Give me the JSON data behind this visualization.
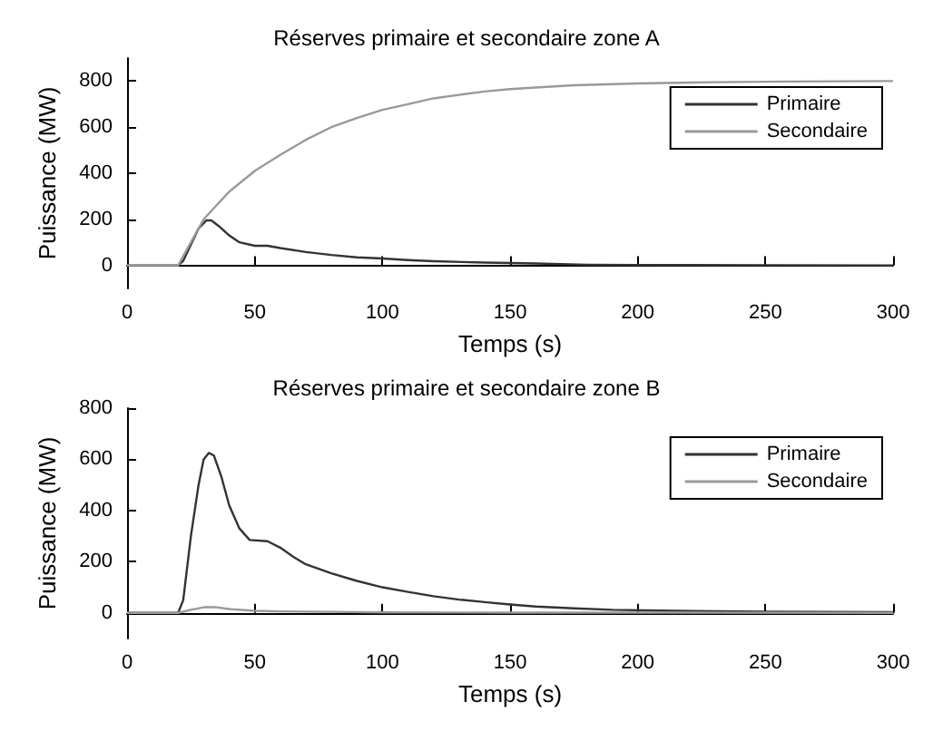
{
  "chart_data": [
    {
      "type": "line",
      "title": "Réserves primaire et secondaire zone A",
      "xlabel": "Temps (s)",
      "ylabel": "Puissance (MW)",
      "xlim": [
        0,
        300
      ],
      "xticks": [
        0,
        50,
        100,
        150,
        200,
        250,
        300
      ],
      "ylim": [
        -100,
        900
      ],
      "yticks": [
        0,
        200,
        400,
        600,
        800
      ],
      "grid": false,
      "legend": "top right",
      "marker": "none",
      "line_style": "solid",
      "series": [
        {
          "name": "Primaire",
          "color": "#333333",
          "x": [
            0,
            20,
            22,
            25,
            28,
            31,
            33,
            36,
            40,
            44,
            50,
            55,
            60,
            70,
            80,
            90,
            100,
            110,
            120,
            140,
            160,
            180,
            200,
            250,
            300
          ],
          "values": [
            0,
            0,
            20,
            90,
            160,
            195,
            195,
            170,
            130,
            100,
            85,
            85,
            75,
            58,
            45,
            35,
            30,
            23,
            18,
            12,
            8,
            3,
            2,
            1,
            0
          ]
        },
        {
          "name": "Secondaire",
          "color": "#999999",
          "x": [
            0,
            20,
            25,
            30,
            35,
            40,
            50,
            60,
            70,
            80,
            90,
            100,
            110,
            120,
            130,
            140,
            150,
            160,
            175,
            200,
            230,
            260,
            300
          ],
          "values": [
            0,
            0,
            100,
            200,
            260,
            320,
            410,
            480,
            545,
            600,
            640,
            675,
            700,
            725,
            740,
            755,
            765,
            772,
            782,
            790,
            795,
            798,
            800
          ]
        }
      ]
    },
    {
      "type": "line",
      "title": "Réserves primaire et secondaire zone B",
      "xlabel": "Temps (s)",
      "ylabel": "Puissance (MW)",
      "xlim": [
        0,
        300
      ],
      "xticks": [
        0,
        50,
        100,
        150,
        200,
        250,
        300
      ],
      "ylim": [
        -100,
        800
      ],
      "yticks": [
        0,
        200,
        400,
        600,
        800
      ],
      "grid": false,
      "legend": "top right",
      "marker": "none",
      "line_style": "solid",
      "series": [
        {
          "name": "Primaire",
          "color": "#333333",
          "x": [
            0,
            20,
            22,
            25,
            28,
            30,
            32,
            34,
            37,
            40,
            44,
            48,
            55,
            60,
            65,
            70,
            80,
            90,
            100,
            110,
            120,
            130,
            140,
            150,
            160,
            175,
            190,
            215,
            250,
            300
          ],
          "values": [
            0,
            0,
            50,
            300,
            500,
            600,
            625,
            615,
            530,
            420,
            330,
            285,
            280,
            255,
            220,
            190,
            155,
            125,
            100,
            82,
            65,
            52,
            42,
            33,
            25,
            18,
            12,
            8,
            5,
            3
          ]
        },
        {
          "name": "Secondaire",
          "color": "#999999",
          "x": [
            0,
            20,
            25,
            30,
            35,
            40,
            50,
            60,
            80,
            100,
            150,
            200,
            300
          ],
          "values": [
            0,
            0,
            12,
            22,
            22,
            15,
            8,
            6,
            4,
            2,
            1,
            1,
            0
          ]
        }
      ]
    }
  ]
}
